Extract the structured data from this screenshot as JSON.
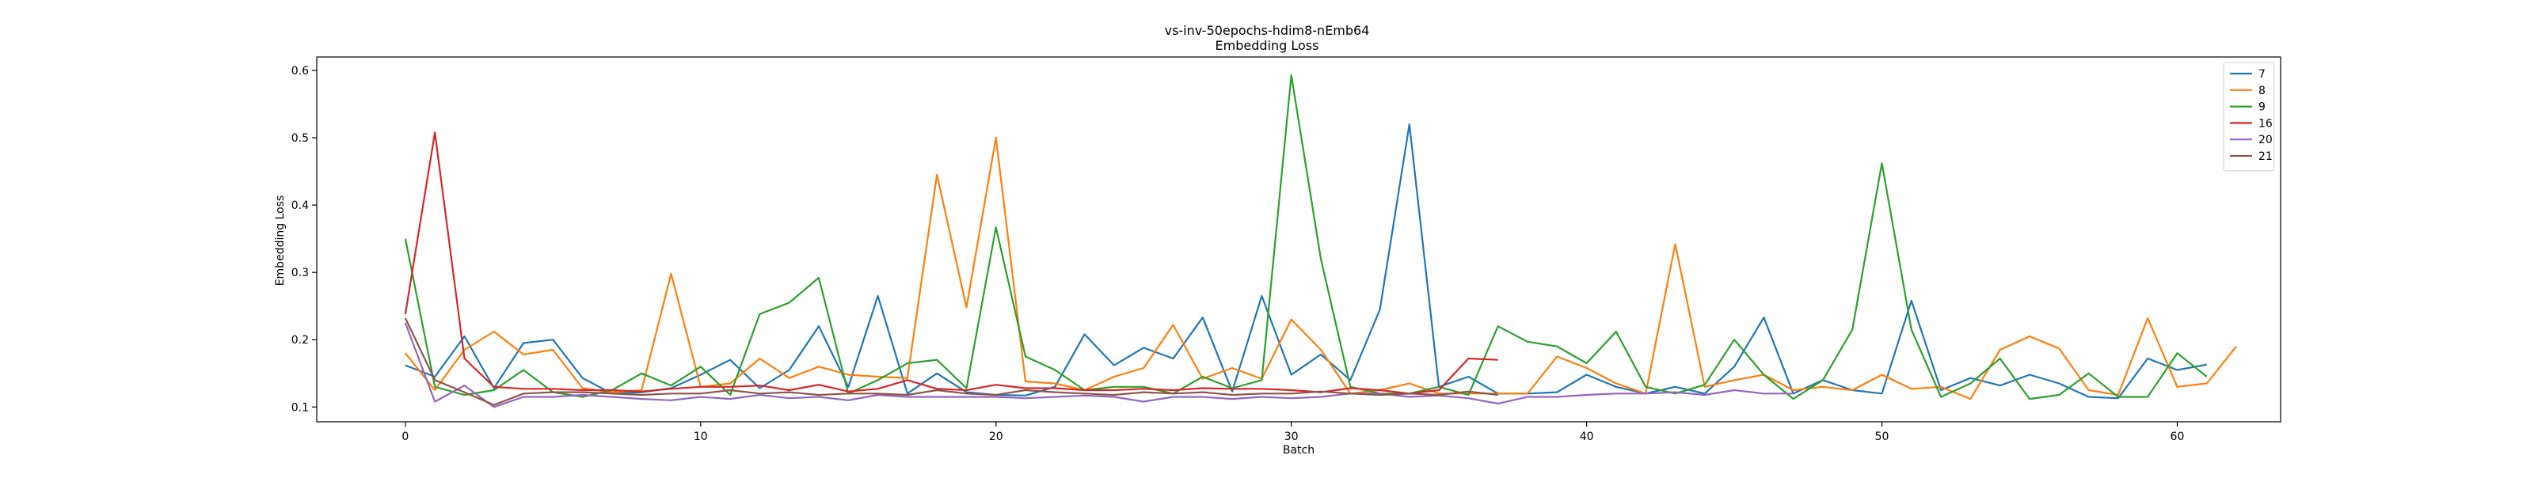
{
  "chart_data": {
    "type": "line",
    "title": "vs-inv-50epochs-hdim8-nEmb64",
    "subtitle": "Embedding Loss",
    "xlabel": "Batch",
    "ylabel": "Embedding Loss",
    "xlim": [
      -3,
      63.5
    ],
    "ylim": [
      0.078,
      0.62
    ],
    "xticks": [
      0,
      10,
      20,
      30,
      40,
      50,
      60
    ],
    "yticks": [
      0.1,
      0.2,
      0.3,
      0.4,
      0.5,
      0.6
    ],
    "grid": false,
    "legend_position": "top-right",
    "series": [
      {
        "name": "7",
        "color": "#1f77b4",
        "values": [
          0.162,
          0.145,
          0.205,
          0.128,
          0.195,
          0.2,
          0.143,
          0.12,
          0.122,
          0.128,
          0.148,
          0.17,
          0.128,
          0.155,
          0.22,
          0.13,
          0.265,
          0.12,
          0.15,
          0.122,
          0.118,
          0.117,
          0.13,
          0.208,
          0.162,
          0.188,
          0.172,
          0.233,
          0.123,
          0.265,
          0.148,
          0.178,
          0.14,
          0.245,
          0.52,
          0.13,
          0.145,
          0.12,
          0.12,
          0.122,
          0.148,
          0.13,
          0.12,
          0.13,
          0.12,
          0.16,
          0.233,
          0.12,
          0.14,
          0.125,
          0.12,
          0.258,
          0.125,
          0.143,
          0.132,
          0.148,
          0.135,
          0.115,
          0.113,
          0.172,
          0.155,
          0.163
        ]
      },
      {
        "name": "8",
        "color": "#ff7f0e",
        "values": [
          0.18,
          0.125,
          0.185,
          0.212,
          0.178,
          0.185,
          0.128,
          0.122,
          0.125,
          0.298,
          0.13,
          0.135,
          0.172,
          0.143,
          0.16,
          0.148,
          0.145,
          0.143,
          0.445,
          0.248,
          0.5,
          0.138,
          0.135,
          0.125,
          0.145,
          0.158,
          0.222,
          0.142,
          0.158,
          0.142,
          0.23,
          0.185,
          0.12,
          0.125,
          0.135,
          0.12,
          0.12,
          0.12,
          0.12,
          0.175,
          0.158,
          0.135,
          0.12,
          0.342,
          0.13,
          0.14,
          0.148,
          0.125,
          0.13,
          0.125,
          0.148,
          0.127,
          0.13,
          0.112,
          0.185,
          0.205,
          0.187,
          0.125,
          0.118,
          0.232,
          0.13,
          0.135,
          0.19
        ]
      },
      {
        "name": "9",
        "color": "#2ca02c",
        "values": [
          0.35,
          0.13,
          0.118,
          0.125,
          0.155,
          0.122,
          0.115,
          0.125,
          0.15,
          0.132,
          0.16,
          0.118,
          0.238,
          0.255,
          0.292,
          0.12,
          0.14,
          0.165,
          0.17,
          0.128,
          0.367,
          0.175,
          0.155,
          0.125,
          0.13,
          0.13,
          0.12,
          0.145,
          0.128,
          0.14,
          0.593,
          0.32,
          0.13,
          0.12,
          0.12,
          0.13,
          0.118,
          0.22,
          0.197,
          0.19,
          0.165,
          0.212,
          0.13,
          0.12,
          0.133,
          0.2,
          0.148,
          0.112,
          0.14,
          0.215,
          0.462,
          0.215,
          0.115,
          0.135,
          0.172,
          0.112,
          0.118,
          0.15,
          0.115,
          0.115,
          0.18,
          0.145
        ]
      },
      {
        "name": "16",
        "color": "#d62728",
        "values": [
          0.238,
          0.508,
          0.172,
          0.13,
          0.127,
          0.127,
          0.125,
          0.125,
          0.123,
          0.127,
          0.13,
          0.13,
          0.132,
          0.125,
          0.133,
          0.123,
          0.127,
          0.14,
          0.127,
          0.125,
          0.133,
          0.128,
          0.128,
          0.125,
          0.125,
          0.127,
          0.125,
          0.128,
          0.127,
          0.127,
          0.125,
          0.122,
          0.128,
          0.125,
          0.12,
          0.125,
          0.172,
          0.17
        ]
      },
      {
        "name": "20",
        "color": "#9467bd",
        "values": [
          0.225,
          0.108,
          0.132,
          0.1,
          0.115,
          0.115,
          0.118,
          0.115,
          0.112,
          0.11,
          0.115,
          0.112,
          0.118,
          0.113,
          0.115,
          0.11,
          0.118,
          0.115,
          0.115,
          0.115,
          0.115,
          0.113,
          0.115,
          0.117,
          0.115,
          0.108,
          0.115,
          0.115,
          0.112,
          0.115,
          0.113,
          0.115,
          0.12,
          0.12,
          0.115,
          0.117,
          0.113,
          0.105,
          0.115,
          0.115,
          0.118,
          0.12,
          0.12,
          0.122,
          0.118,
          0.125,
          0.12,
          0.12
        ]
      },
      {
        "name": "21",
        "color": "#8c564b",
        "values": [
          0.232,
          0.14,
          0.122,
          0.103,
          0.12,
          0.122,
          0.122,
          0.12,
          0.118,
          0.12,
          0.12,
          0.125,
          0.12,
          0.122,
          0.118,
          0.12,
          0.12,
          0.118,
          0.125,
          0.12,
          0.118,
          0.125,
          0.122,
          0.12,
          0.118,
          0.122,
          0.12,
          0.122,
          0.118,
          0.12,
          0.12,
          0.123,
          0.12,
          0.118,
          0.12,
          0.118,
          0.123,
          0.118
        ]
      }
    ]
  }
}
